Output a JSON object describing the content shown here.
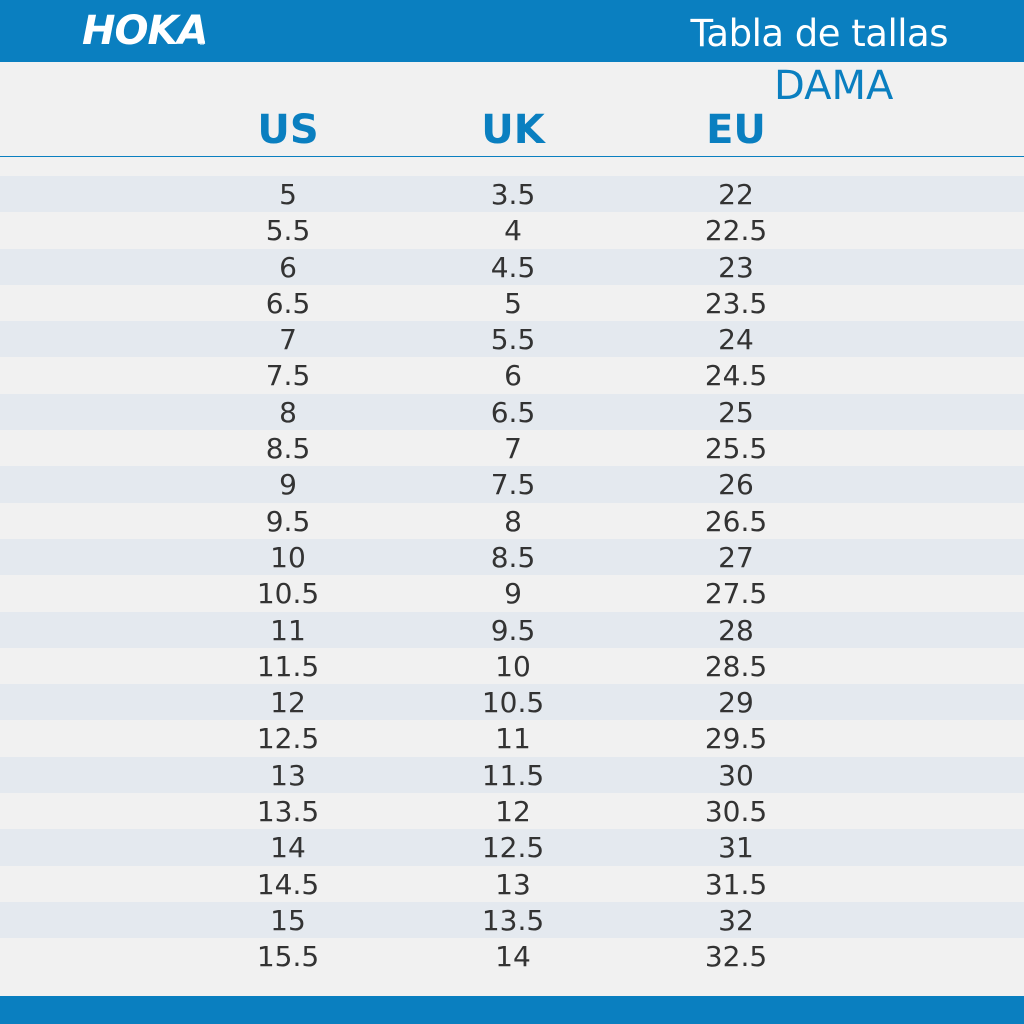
{
  "brand": {
    "logo_text": "HOKA",
    "logo_mark": "®"
  },
  "header": {
    "title": "Tabla de tallas"
  },
  "section": {
    "subtitle": "DAMA"
  },
  "columns": [
    "US",
    "UK",
    "EU"
  ],
  "colors": {
    "brand_blue": "#0a7fc0",
    "stripe": "#e4e9ef",
    "background": "#f1f1f1",
    "text": "#333333"
  },
  "rows": [
    [
      "5",
      "3.5",
      "22"
    ],
    [
      "5.5",
      "4",
      "22.5"
    ],
    [
      "6",
      "4.5",
      "23"
    ],
    [
      "6.5",
      "5",
      "23.5"
    ],
    [
      "7",
      "5.5",
      "24"
    ],
    [
      "7.5",
      "6",
      "24.5"
    ],
    [
      "8",
      "6.5",
      "25"
    ],
    [
      "8.5",
      "7",
      "25.5"
    ],
    [
      "9",
      "7.5",
      "26"
    ],
    [
      "9.5",
      "8",
      "26.5"
    ],
    [
      "10",
      "8.5",
      "27"
    ],
    [
      "10.5",
      "9",
      "27.5"
    ],
    [
      "11",
      "9.5",
      "28"
    ],
    [
      "11.5",
      "10",
      "28.5"
    ],
    [
      "12",
      "10.5",
      "29"
    ],
    [
      "12.5",
      "11",
      "29.5"
    ],
    [
      "13",
      "11.5",
      "30"
    ],
    [
      "13.5",
      "12",
      "30.5"
    ],
    [
      "14",
      "12.5",
      "31"
    ],
    [
      "14.5",
      "13",
      "31.5"
    ],
    [
      "15",
      "13.5",
      "32"
    ],
    [
      "15.5",
      "14",
      "32.5"
    ]
  ]
}
